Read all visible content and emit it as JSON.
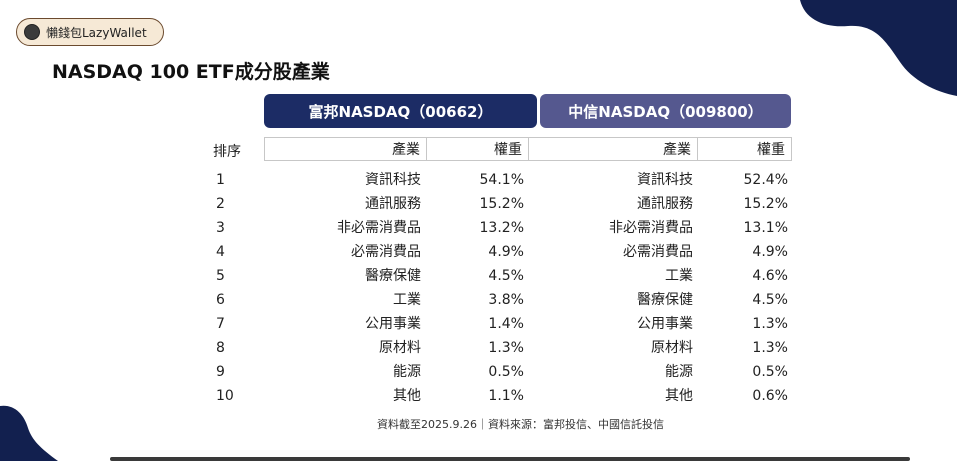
{
  "brand": {
    "name": "懶錢包LazyWallet"
  },
  "title": "NASDAQ 100 ETF成分股產業",
  "funds": [
    {
      "name": "富邦NASDAQ（00662）",
      "color": "#1c2c65"
    },
    {
      "name": "中信NASDAQ（009800）",
      "color": "#55588f"
    }
  ],
  "headers": {
    "rank": "排序",
    "industry": "產業",
    "weight": "權重"
  },
  "rows": [
    {
      "rank": "1",
      "f1_industry": "資訊科技",
      "f1_weight": "54.1%",
      "f2_industry": "資訊科技",
      "f2_weight": "52.4%"
    },
    {
      "rank": "2",
      "f1_industry": "通訊服務",
      "f1_weight": "15.2%",
      "f2_industry": "通訊服務",
      "f2_weight": "15.2%"
    },
    {
      "rank": "3",
      "f1_industry": "非必需消費品",
      "f1_weight": "13.2%",
      "f2_industry": "非必需消費品",
      "f2_weight": "13.1%"
    },
    {
      "rank": "4",
      "f1_industry": "必需消費品",
      "f1_weight": "4.9%",
      "f2_industry": "必需消費品",
      "f2_weight": "4.9%"
    },
    {
      "rank": "5",
      "f1_industry": "醫療保健",
      "f1_weight": "4.5%",
      "f2_industry": "工業",
      "f2_weight": "4.6%"
    },
    {
      "rank": "6",
      "f1_industry": "工業",
      "f1_weight": "3.8%",
      "f2_industry": "醫療保健",
      "f2_weight": "4.5%"
    },
    {
      "rank": "7",
      "f1_industry": "公用事業",
      "f1_weight": "1.4%",
      "f2_industry": "公用事業",
      "f2_weight": "1.3%"
    },
    {
      "rank": "8",
      "f1_industry": "原材料",
      "f1_weight": "1.3%",
      "f2_industry": "原材料",
      "f2_weight": "1.3%"
    },
    {
      "rank": "9",
      "f1_industry": "能源",
      "f1_weight": "0.5%",
      "f2_industry": "能源",
      "f2_weight": "0.5%"
    },
    {
      "rank": "10",
      "f1_industry": "其他",
      "f1_weight": "1.1%",
      "f2_industry": "其他",
      "f2_weight": "0.6%"
    }
  ],
  "footer": "資料截至2025.9.26｜資料來源：富邦投信、中國信託投信",
  "colors": {
    "deco_navy": "#12204f"
  }
}
